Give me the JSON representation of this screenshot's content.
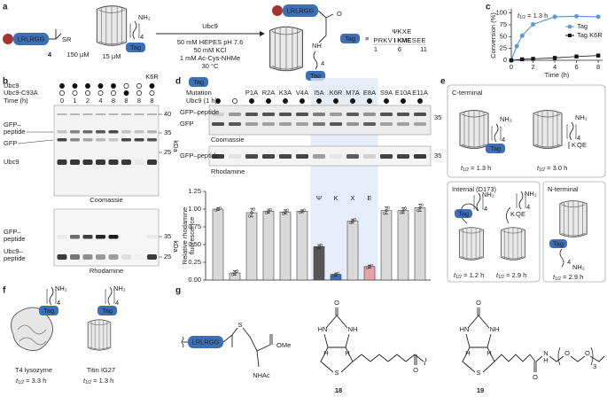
{
  "panel_labels": [
    "a",
    "b",
    "c",
    "d",
    "e",
    "f",
    "g"
  ],
  "scheme_a": {
    "peptide": "LRLRGG",
    "thioester": "SR",
    "compound": "4",
    "compound_conc": "150 µM",
    "amine": "NH₂",
    "linker": "4",
    "tag": "Tag",
    "protein_conc": "15 µM",
    "enzyme": "Ubc9",
    "conditions": [
      "50 mM HEPES pH 7.6",
      "50 mM KCl",
      "1 mM Ac-Cys-NHMe",
      "30 °C"
    ],
    "product_peptide": "LRLRGG",
    "product_o": "O",
    "product_nh": "NH",
    "product_linker": "4",
    "product_tag": "Tag",
    "definition_tag": "Tag",
    "equiv": "≡",
    "motif": [
      "Ψ",
      "K",
      "X",
      "E"
    ],
    "sequence": [
      "P",
      "R",
      "K",
      "V",
      "I",
      "K",
      "M",
      "E",
      "S",
      "E",
      "E"
    ],
    "positions": [
      "1",
      "6",
      "11"
    ]
  },
  "gel_b": {
    "rows": [
      "Ubc9",
      "Ubc9-C93A",
      "Time (h)"
    ],
    "times": [
      "0",
      "1",
      "2",
      "4",
      "8",
      "8",
      "8",
      "8"
    ],
    "variant": "K6R",
    "coomassie": {
      "bands": [
        [
          "GFP–",
          "peptide"
        ],
        "GFP",
        "Ubc9"
      ],
      "stain": "Coomassie",
      "markers": [
        "40",
        "35",
        "25"
      ],
      "unit": "kDa"
    },
    "rhodamine": {
      "bands": [
        [
          "GFP–",
          "peptide"
        ],
        [
          "Ubc9–",
          "peptide"
        ]
      ],
      "stain": "Rhodamine",
      "markers": [
        "35",
        "25"
      ],
      "unit": "kDa"
    }
  },
  "panel_d": {
    "tag": "Tag",
    "row_mutation": "Mutation",
    "row_enzyme": "Ubc9 (1 h)",
    "coomassie": {
      "bands": [
        "GFP–peptide",
        "GFP"
      ],
      "stain": "Coomassie",
      "marker": "35"
    },
    "rhodamine": {
      "bands": [
        "GFP–peptide"
      ],
      "stain": "Rhodamine",
      "marker": "35"
    },
    "unit": "kDa"
  },
  "panel_e": {
    "c_terminal": {
      "title": "C-terminal",
      "tag": "Tag",
      "amine": "NH₂",
      "linker": "4",
      "mutant": [
        "K",
        "Q",
        "E"
      ],
      "half_lives": [
        {
          "t": "t",
          "sub": "1/2",
          "rest": " = 1.3 h"
        },
        {
          "t": "t",
          "sub": "1/2",
          "rest": " = 3.0 h"
        }
      ]
    },
    "internal": {
      "title": "Internal (D173)",
      "tag": "Tag",
      "amine": "NH₂",
      "linker": "4",
      "mutant": [
        "K",
        "Q",
        "E"
      ],
      "half_lives": [
        {
          "t": "t",
          "sub": "1/2",
          "rest": " = 1.2 h"
        },
        {
          "t": "t",
          "sub": "1/2",
          "rest": " = 2.9 h"
        }
      ]
    },
    "n_terminal": {
      "title": "N-terminal",
      "tag": "Tag",
      "amine": "NH₂",
      "linker": "4",
      "half_lives": [
        {
          "t": "t",
          "sub": "1/2",
          "rest": " = 2.9 h"
        }
      ]
    }
  },
  "panel_f": {
    "proteins": [
      {
        "name": "T4 lysozyme",
        "tag": "Tag",
        "amine": "NH₂",
        "linker": "4",
        "half_life": {
          "t": "t",
          "sub": "1/2",
          "rest": " = 3.3 h"
        }
      },
      {
        "name": "Titin IG27",
        "tag": "Tag",
        "amine": "NH₂",
        "linker": "4",
        "half_life": {
          "t": "t",
          "sub": "1/2",
          "rest": " = 1.3 h"
        }
      }
    ]
  },
  "panel_g": {
    "peptide": "LRLRGG",
    "s": "S",
    "ome": "OMe",
    "nhac": "NHAc",
    "compound_18": {
      "hn": "HN",
      "nh": "NH",
      "o": [
        "O",
        "O"
      ],
      "h": [
        "H",
        "H"
      ],
      "s": "S",
      "label": "18"
    },
    "compound_19": {
      "hn": "HN",
      "nh": "NH",
      "o": [
        "O",
        "O",
        "O",
        "O"
      ],
      "h": [
        "H",
        "H",
        "H"
      ],
      "s": "S",
      "n": "N",
      "repeat": "3",
      "label": "19"
    }
  },
  "chart_data": [
    {
      "type": "scatter",
      "xlabel": "Time (h)",
      "ylabel": "Conversion (%)",
      "annotation": {
        "t": "t",
        "sub": "1/2",
        "rest": " = 1.3 h"
      },
      "xlim": [
        0,
        8.4
      ],
      "xticks": [
        0,
        2,
        4,
        6,
        8
      ],
      "ylim": [
        0,
        105
      ],
      "yticks": [
        0,
        25,
        50,
        75,
        100
      ],
      "series": [
        {
          "name": "Tag",
          "color": "#5b9bd5",
          "marker": "circle",
          "x": [
            0,
            0.5,
            1,
            2,
            4,
            6,
            8
          ],
          "values": [
            0,
            30,
            52,
            76,
            92,
            93,
            92
          ]
        },
        {
          "name": "Tag K6R",
          "color": "#111111",
          "marker": "square",
          "x": [
            0,
            1,
            2,
            4,
            6,
            8
          ],
          "values": [
            0,
            2,
            3,
            5,
            8,
            10
          ]
        }
      ]
    },
    {
      "type": "bar",
      "ylabel": [
        "Relative rhodamine",
        "fluorescence"
      ],
      "categories": [
        null,
        null,
        "P1A",
        "R2A",
        "K3A",
        "V4A",
        "I5A",
        "K6R",
        "M7A",
        "E8A",
        "S9A",
        "E10A",
        "E11A"
      ],
      "values": [
        1.0,
        0.1,
        0.95,
        0.97,
        0.96,
        0.97,
        0.47,
        0.08,
        0.83,
        0.19,
        0.98,
        0.98,
        1.02
      ],
      "errors": [
        0.02,
        0.03,
        0.06,
        0.03,
        0.03,
        0.02,
        0.03,
        0.02,
        0.03,
        0.02,
        0.05,
        0.04,
        0.05
      ],
      "colors": [
        "#d9d9d9",
        "#d9d9d9",
        "#d9d9d9",
        "#d9d9d9",
        "#d9d9d9",
        "#d9d9d9",
        "#555555",
        "#3d6fb6",
        "#d9d9d9",
        "#e8a0a8",
        "#d9d9d9",
        "#d9d9d9",
        "#d9d9d9"
      ],
      "label_colors": [
        "#222222",
        "#222222",
        "#222222",
        "#222222",
        "#222222",
        "#222222",
        "#222222",
        "#3d6fb6",
        "#222222",
        "#c0392b",
        "#222222",
        "#222222",
        "#222222"
      ],
      "annotations": [
        "Ψ",
        "K",
        "X",
        "E"
      ],
      "annotation_colors": [
        "#333333",
        "#3d6fb6",
        "#222222",
        "#c0392b"
      ],
      "highlight": [
        "I5A",
        "E8A"
      ],
      "ylim": [
        0,
        1.25
      ],
      "yticks": [
        {
          "value": 0,
          "label": "0.00"
        },
        {
          "value": 0.25,
          "label": "0.25"
        },
        {
          "value": 0.5,
          "label": "0.50"
        },
        {
          "value": 0.75,
          "label": "0.75"
        },
        {
          "value": 1,
          "label": "1.00"
        },
        {
          "value": 1.25,
          "label": "1.25"
        }
      ]
    }
  ]
}
